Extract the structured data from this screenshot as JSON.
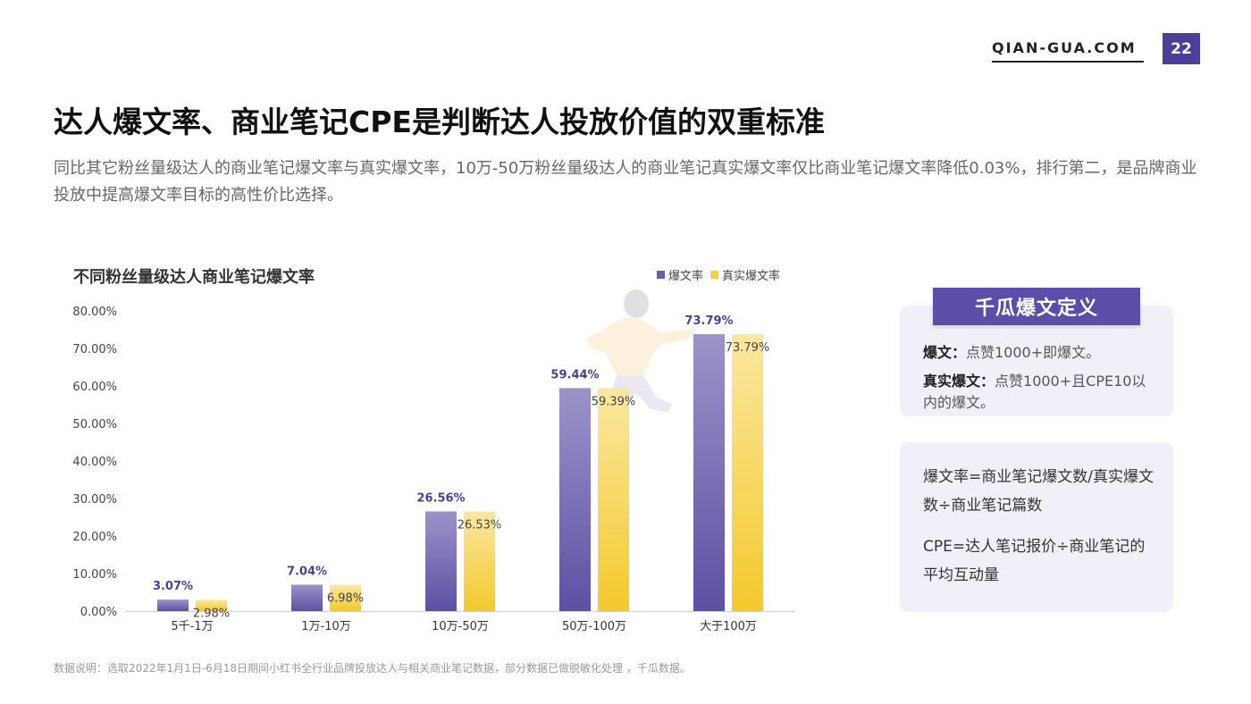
{
  "header": {
    "brand": "QIAN-GUA.COM",
    "page_number": "22"
  },
  "title": "达人爆文率、商业笔记CPE是判断达人投放价值的双重标准",
  "subtitle": "同比其它粉丝量级达人的商业笔记爆文率与真实爆文率，10万-50万粉丝量级达人的商业笔记真实爆文率仅比商业笔记爆文率降低0.03%，排行第二，是品牌商业投放中提高爆文率目标的高性价比选择。",
  "definitions": {
    "header": "千瓜爆文定义",
    "items": [
      {
        "term": "爆文：",
        "desc": "点赞1000+即爆文。"
      },
      {
        "term": "真实爆文：",
        "desc": "点赞1000+且CPE10以内的爆文。"
      }
    ]
  },
  "formulas": [
    "爆文率=商业笔记爆文数/真实爆文数÷商业笔记篇数",
    "CPE=达人笔记报价÷商业笔记的平均互动量"
  ],
  "footnote": "数据说明：选取2022年1月1日-6月18日期间小红书全行业品牌投放达人与相关商业笔记数据，部分数据已做脱敏化处理 ，千瓜数据。",
  "chart_data": {
    "type": "bar",
    "title": "不同粉丝量级达人商业笔记爆文率",
    "categories": [
      "5千-1万",
      "1万-10万",
      "10万-50万",
      "50万-100万",
      "大于100万"
    ],
    "series": [
      {
        "name": "爆文率",
        "values": [
          3.07,
          7.04,
          26.56,
          59.44,
          73.79
        ],
        "labels": [
          "3.07%",
          "7.04%",
          "26.56%",
          "59.44%",
          "73.79%"
        ],
        "color": "#6a5fad"
      },
      {
        "name": "真实爆文率",
        "values": [
          2.98,
          6.98,
          26.53,
          59.39,
          73.79
        ],
        "labels": [
          "2.98%",
          "6.98%",
          "26.53%",
          "59.39%",
          "73.79%"
        ],
        "color": "#f5cf45"
      }
    ],
    "y_ticks": [
      "0.00%",
      "10.00%",
      "20.00%",
      "30.00%",
      "40.00%",
      "50.00%",
      "60.00%",
      "70.00%",
      "80.00%"
    ],
    "ylim": [
      0,
      80
    ],
    "legend_position": "top-right",
    "grid": false
  }
}
